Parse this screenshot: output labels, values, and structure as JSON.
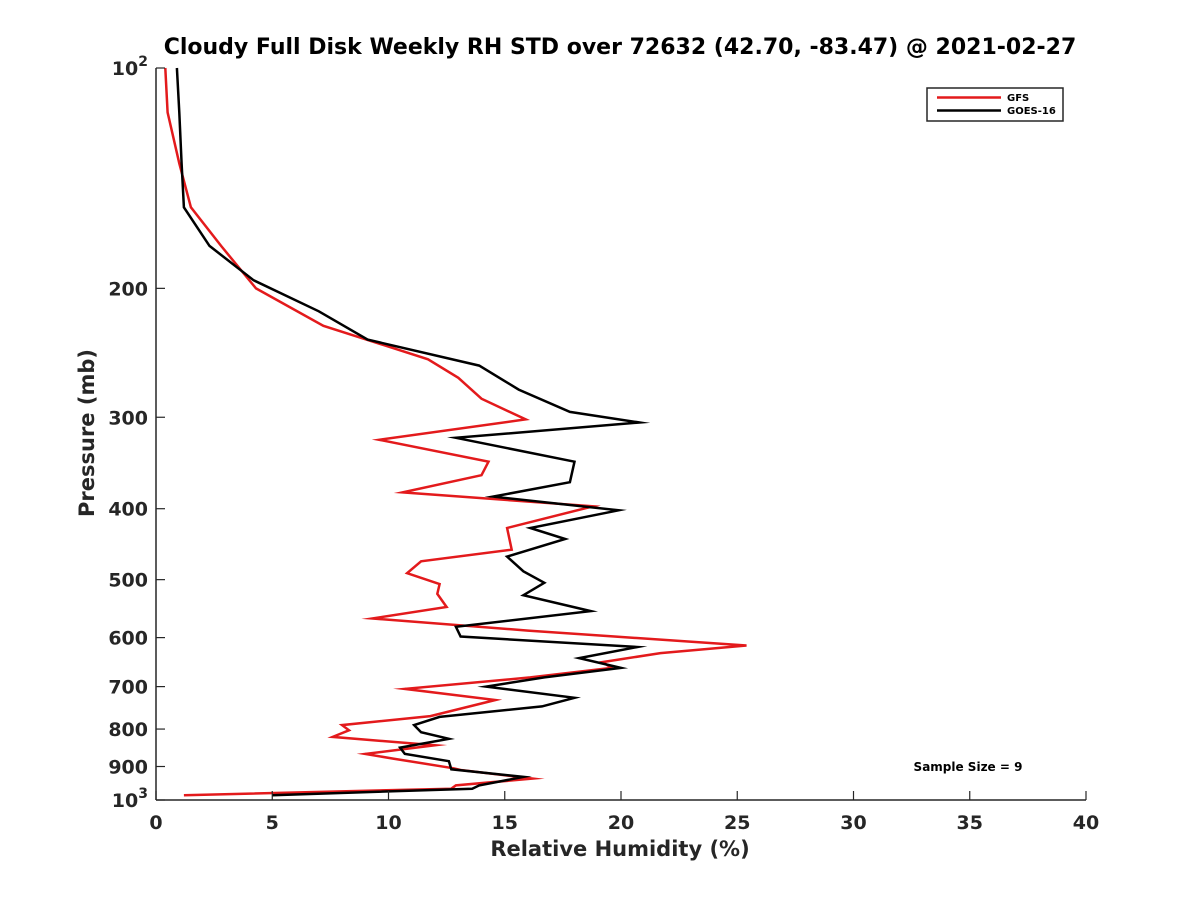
{
  "chart_data": {
    "type": "line",
    "title": "Cloudy Full Disk Weekly RH STD over 72632 (42.70, -83.47) @ 2021-02-27",
    "xlabel": "Relative Humidity (%)",
    "ylabel": "Pressure (mb)",
    "xlim": [
      0,
      40
    ],
    "ylim": [
      100,
      1000
    ],
    "y_scale": "log",
    "y_reversed": true,
    "grid": false,
    "legend_position": "top-right",
    "x_ticks": [
      {
        "value": 0,
        "label": "0"
      },
      {
        "value": 5,
        "label": "5"
      },
      {
        "value": 10,
        "label": "10"
      },
      {
        "value": 15,
        "label": "15"
      },
      {
        "value": 20,
        "label": "20"
      },
      {
        "value": 25,
        "label": "25"
      },
      {
        "value": 30,
        "label": "30"
      },
      {
        "value": 35,
        "label": "35"
      },
      {
        "value": 40,
        "label": "40"
      }
    ],
    "y_ticks": [
      {
        "value": 100,
        "base": "10",
        "exp": "2"
      },
      {
        "value": 200,
        "label": "200"
      },
      {
        "value": 300,
        "label": "300"
      },
      {
        "value": 400,
        "label": "400"
      },
      {
        "value": 500,
        "label": "500"
      },
      {
        "value": 600,
        "label": "600"
      },
      {
        "value": 700,
        "label": "700"
      },
      {
        "value": 800,
        "label": "800"
      },
      {
        "value": 900,
        "label": "900"
      },
      {
        "value": 1000,
        "base": "10",
        "exp": "3"
      }
    ],
    "series": [
      {
        "name": "GFS",
        "color": "#e31a1c",
        "points": [
          [
            0.4,
            100
          ],
          [
            0.5,
            115
          ],
          [
            1.0,
            135
          ],
          [
            1.5,
            155
          ],
          [
            2.8,
            175
          ],
          [
            4.3,
            200
          ],
          [
            7.2,
            225
          ],
          [
            11.7,
            250
          ],
          [
            13.0,
            265
          ],
          [
            14.0,
            283
          ],
          [
            15.9,
            302
          ],
          [
            9.6,
            322
          ],
          [
            14.3,
            345
          ],
          [
            14.0,
            360
          ],
          [
            10.6,
            380
          ],
          [
            18.8,
            397
          ],
          [
            15.1,
            425
          ],
          [
            15.3,
            455
          ],
          [
            11.4,
            472
          ],
          [
            10.8,
            490
          ],
          [
            12.2,
            507
          ],
          [
            12.1,
            523
          ],
          [
            12.5,
            545
          ],
          [
            9.3,
            565
          ],
          [
            16.0,
            587
          ],
          [
            25.4,
            615
          ],
          [
            21.7,
            630
          ],
          [
            19.2,
            648
          ],
          [
            19.6,
            660
          ],
          [
            16.1,
            680
          ],
          [
            10.7,
            705
          ],
          [
            14.6,
            730
          ],
          [
            11.8,
            768
          ],
          [
            8.0,
            790
          ],
          [
            8.3,
            803
          ],
          [
            7.6,
            820
          ],
          [
            12.0,
            842
          ],
          [
            9.0,
            865
          ],
          [
            10.2,
            878
          ],
          [
            12.8,
            905
          ],
          [
            13.1,
            910
          ],
          [
            16.2,
            935
          ],
          [
            12.9,
            955
          ],
          [
            12.7,
            965
          ],
          [
            1.2,
            985
          ]
        ]
      },
      {
        "name": "GOES-16",
        "color": "#000000",
        "points": [
          [
            0.9,
            100
          ],
          [
            1.0,
            115
          ],
          [
            1.1,
            135
          ],
          [
            1.2,
            155
          ],
          [
            2.3,
            175
          ],
          [
            4.2,
            195
          ],
          [
            7.0,
            215
          ],
          [
            9.1,
            235
          ],
          [
            13.9,
            255
          ],
          [
            15.6,
            275
          ],
          [
            17.8,
            295
          ],
          [
            20.8,
            305
          ],
          [
            12.9,
            320
          ],
          [
            18.0,
            345
          ],
          [
            17.8,
            368
          ],
          [
            14.5,
            385
          ],
          [
            19.9,
            402
          ],
          [
            16.1,
            425
          ],
          [
            17.6,
            440
          ],
          [
            15.1,
            465
          ],
          [
            15.8,
            487
          ],
          [
            16.7,
            505
          ],
          [
            15.8,
            525
          ],
          [
            18.7,
            552
          ],
          [
            12.9,
            580
          ],
          [
            13.1,
            598
          ],
          [
            20.7,
            618
          ],
          [
            18.2,
            640
          ],
          [
            20.0,
            660
          ],
          [
            16.7,
            680
          ],
          [
            14.2,
            700
          ],
          [
            18.0,
            725
          ],
          [
            16.6,
            745
          ],
          [
            12.2,
            770
          ],
          [
            11.1,
            790
          ],
          [
            11.4,
            808
          ],
          [
            12.6,
            825
          ],
          [
            10.5,
            848
          ],
          [
            10.7,
            865
          ],
          [
            12.6,
            885
          ],
          [
            12.7,
            908
          ],
          [
            15.8,
            930
          ],
          [
            13.9,
            955
          ],
          [
            13.6,
            965
          ],
          [
            5.0,
            985
          ]
        ]
      }
    ],
    "annotations": [
      {
        "text": "Sample Size = 9"
      }
    ]
  }
}
